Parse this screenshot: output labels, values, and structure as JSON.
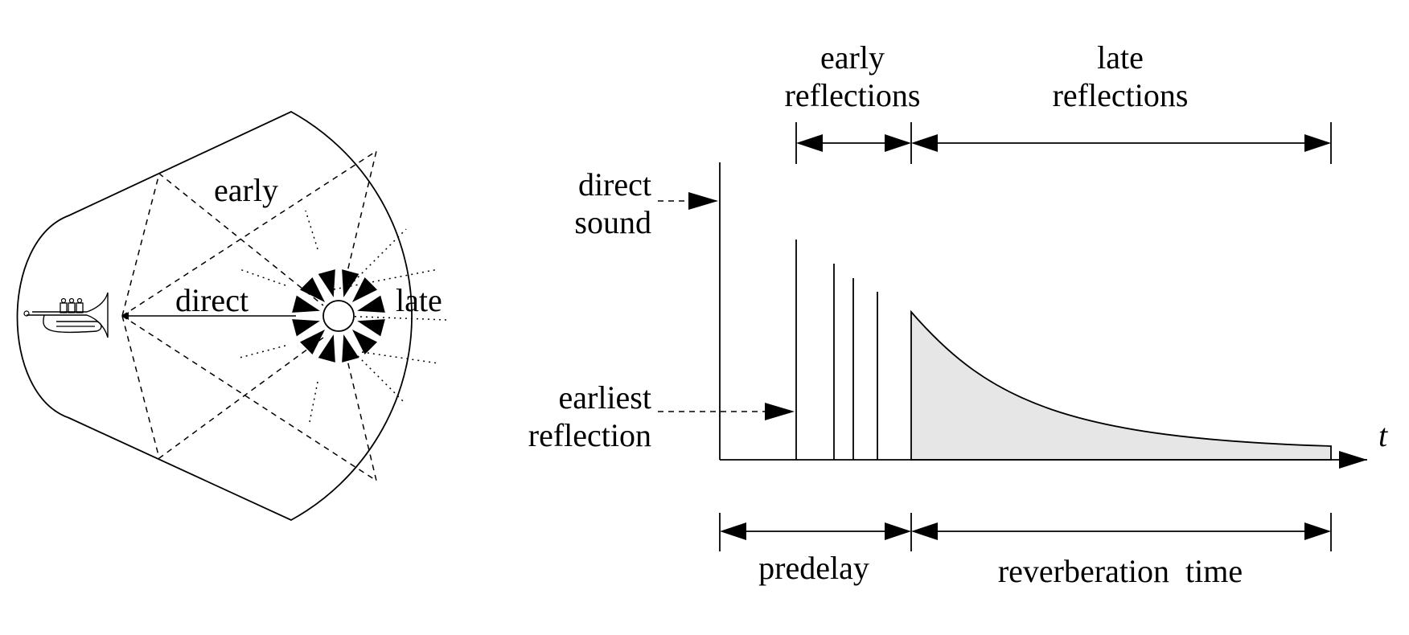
{
  "room": {
    "label_early": "early",
    "label_direct": "direct",
    "label_late": "late",
    "source_icon": "trumpet-icon",
    "listener_icon": "listener-circle-icon"
  },
  "response": {
    "label_early_reflections_1": "early",
    "label_early_reflections_2": "reflections",
    "label_late_reflections_1": "late",
    "label_late_reflections_2": "reflections",
    "label_direct_sound_1": "direct",
    "label_direct_sound_2": "sound",
    "label_earliest_reflection_1": "earliest",
    "label_earliest_reflection_2": "reflection",
    "label_predelay": "predelay",
    "label_reverberation_time": "reverberation  time",
    "axis_t": "t",
    "fill_color": "#e6e6e6"
  }
}
